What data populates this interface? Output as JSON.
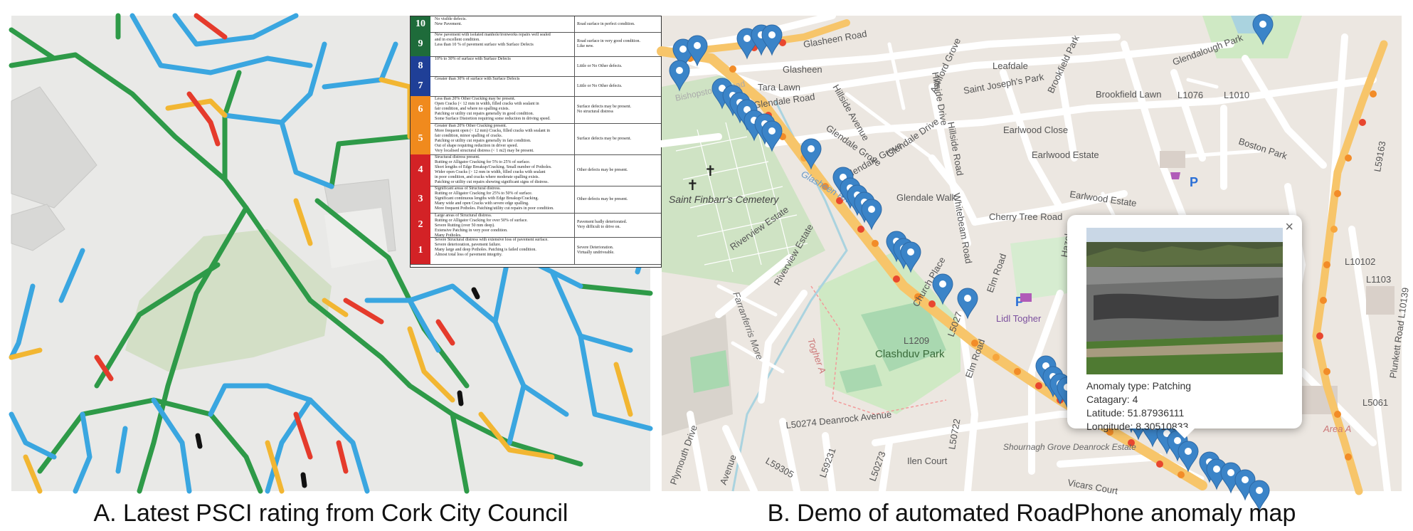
{
  "panel_a": {
    "caption": "A. Latest PSCI rating from Cork City Council",
    "legend": [
      {
        "rating": "10",
        "color": "#1e6b3a",
        "description": "No visible defects.\nNew Pavement.",
        "note": "Road surface in perfect condition."
      },
      {
        "rating": "9",
        "color": "#1e6b3a",
        "description": "New pavement with isolated manhole/ironworks repairs well sealed\nand in excellent condition.\nLess than 10 % of pavement surface with Surface Defects",
        "note": "Road surface in very good condition.\nLike new."
      },
      {
        "rating": "8",
        "color": "#1f3f97",
        "description": "10% to 30% of surface with Surface Defects",
        "note": "Little or No Other defects."
      },
      {
        "rating": "7",
        "color": "#1f3f97",
        "description": "Greater than 30% of surface with Surface Defects",
        "note": "Little or No Other defects."
      },
      {
        "rating": "6",
        "color": "#f08a1d",
        "description": "Less than 20% Other Cracking may be present.\nOpen Cracks (< 12 mm in width, filled cracks with sealant in\nfair condition, and where no spalling exists.\nPatching or utility cut repairs generally in good condition.\nSome Surface Distortion requiring some reduction in driving speed.",
        "note": "Surface defects may be present.\nNo structural distress"
      },
      {
        "rating": "5",
        "color": "#f08a1d",
        "description": "Greater than 20% Other Cracking present.\nMore frequent open (< 12 mm) Cracks, filled cracks with sealant in\nfair condition, minor spalling of cracks.\nPatching or utility cut repairs generally in fair condition.\nOut of shape requiring reduction in driver speed.\nVery localised structural distress (< 1 m2) may be present.",
        "note": "Surface defects may be present."
      },
      {
        "rating": "4",
        "color": "#d32226",
        "description": "Structural distress present.\nRutting or Alligator Cracking for 5% to 25% of surface.\nShort lengths of Edge Breakup/Cracking. Small number of Potholes.\nWider open Cracks (> 12 mm in width, filled cracks with sealant\nin poor condition, and cracks where moderate spalling exists.\nPatching or utility cut repairs showing significant signs of distress.",
        "note": "Other defects may be present."
      },
      {
        "rating": "3",
        "color": "#d32226",
        "description": "Significant areas of Structural distress.\nRutting or Alligator Cracking for 25% to 50% of surface.\nSignificant continuous lengths with Edge Breakup/Cracking.\nMany wide and open Cracks with severe edge spalling.\nMore frequent Potholes. Patching/utility cut repairs in poor condition.",
        "note": "Other defects may be present."
      },
      {
        "rating": "2",
        "color": "#d32226",
        "description": "Large areas of Structural distress.\nRutting or Alligator Cracking for over 50% of surface.\nSevere Rutting (over 50 mm deep).\nExtensive Patching in very poor condition.\nMany Potholes.",
        "note": "Pavement badly deteriorated.\nVery difficult to drive on."
      },
      {
        "rating": "1",
        "color": "#d32226",
        "description": "Severe Structural distress with extensive loss of pavement surface.\nSevere deterioration, pavement failure.\nMany large and deep Potholes. Patching is failed condition.\nAlmost total loss of pavement integrity.",
        "note": "Severe Deterioration.\nVirtually undriveable."
      }
    ],
    "rating_colors": {
      "green": "#2e9a48",
      "blue": "#3aa6e0",
      "yellow": "#f2b632",
      "red": "#e53b2c",
      "black": "#111111"
    }
  },
  "panel_b": {
    "caption": "B. Demo of automated RoadPhone anomaly map",
    "labels": {
      "glasheen": "Glasheen",
      "glasheen_road": "Glasheen Road",
      "tara_lawn": "Tara Lawn",
      "glendale_road": "Glendale Road",
      "bishopstown_road": "Bishopstown Road",
      "hillside_avenue": "Hillside Avenue",
      "hillside_drive": "Hillside Drive",
      "ashford_grove": "Ashford Grove",
      "leafdale": "Leafdale",
      "saint_josephs_park": "Saint Joseph's Park",
      "brookfield_park": "Brookfield Park",
      "brookfield_lawn": "Brookfield Lawn",
      "glendalough_park": "Glendalough Park",
      "l1076": "L1076",
      "l1010": "L1010",
      "earlwood_close": "Earlwood Close",
      "boston_park": "Boston Park",
      "earlwood_estate_1": "Earlwood Estate",
      "earlwood_estate_2": "Earlwood Estate",
      "glendale_grove_1": "Glendale Grove",
      "glendale_grove_2": "Glendale Grove",
      "glendale_drive": "Glendale Drive",
      "glendale_walk": "Glendale Walk",
      "hillside_road": "Hillside Road",
      "whitebeam_road": "Whitebeam Road",
      "glasheen_river": "Glasheen River",
      "cherry_tree_road": "Cherry Tree Road",
      "cemetery": "Saint Finbarr's Cemetery",
      "riverview_estate_1": "Riverview Estate",
      "riverview_estate_2": "Riverview Estate",
      "church_place": "Church Place",
      "elm_road_1": "Elm Road",
      "elm_road_2": "Elm Road",
      "hazel": "Hazel",
      "lidl": "Lidl Togher",
      "farranferris_more": "Farranferris More",
      "togher_a": "Togher A",
      "clashduv_park": "Clashduv Park",
      "l5027": "L5027",
      "deanrock": "L50274 Deanrock Avenue",
      "ilen_court": "Ilen Court",
      "l50722": "L50722",
      "shournagh": "Shournagh Grove Deanrock Estate",
      "vicars_court": "Vicars Court",
      "l59305": "L59305",
      "l59231": "L59231",
      "l50273": "L50273",
      "plymouth_drive": "Plymouth Drive",
      "avenue": "Avenue",
      "l59163": "L59163",
      "l10102": "L10102",
      "l1103": "L1103",
      "plunkett_road": "Plunkett Road L10139",
      "l5061": "L5061",
      "l1209": "L1209",
      "area_a": "Area A"
    },
    "popup": {
      "anomaly_type": "Anomaly type: Patching",
      "category": "Catagary: 4",
      "latitude": "Latitude: 51.87936111",
      "longitude": "Longitude: 8.30510833",
      "close": "×"
    },
    "colors": {
      "marker": "#3b84c8",
      "route": "#f7c56a",
      "anomaly": "#e8472f",
      "park": "#cfe9c4",
      "water": "#aad3df"
    }
  }
}
